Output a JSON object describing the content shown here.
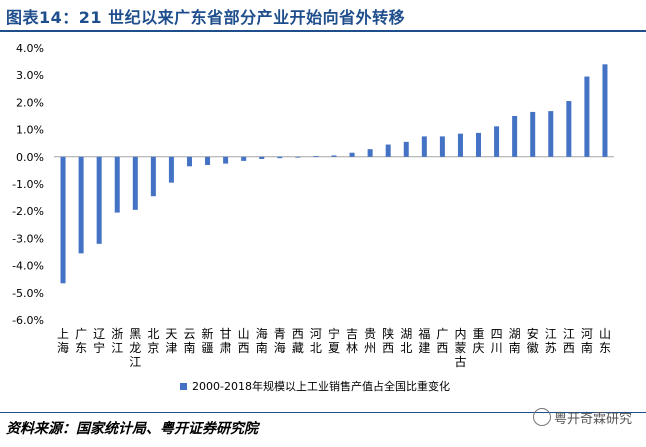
{
  "title": "图表14：21 世纪以来广东省部分产业开始向省外转移",
  "source": "资料来源：国家统计局、粤开证券研究院",
  "watermark": "粤开奇霖研究",
  "colors": {
    "bar": "#4472c4",
    "title": "#1f4e8c",
    "axis": "#808080"
  },
  "chart_data": {
    "type": "bar",
    "categories": [
      "上海",
      "广东",
      "辽宁",
      "浙江",
      "黑龙江",
      "北京",
      "天津",
      "云南",
      "新疆",
      "甘肃",
      "山西",
      "海南",
      "青海",
      "西藏",
      "河北",
      "宁夏",
      "吉林",
      "贵州",
      "陕西",
      "湖北",
      "福建",
      "广西",
      "内蒙古",
      "重庆",
      "四川",
      "湖南",
      "安徽",
      "江苏",
      "江西",
      "河南",
      "山东"
    ],
    "series": [
      {
        "name": "2000-2018年规模以上工业销售产值占全国比重变化",
        "values": [
          -4.65,
          -3.55,
          -3.2,
          -2.05,
          -1.95,
          -1.45,
          -0.95,
          -0.35,
          -0.3,
          -0.25,
          -0.15,
          -0.08,
          -0.05,
          -0.03,
          0.03,
          0.05,
          0.15,
          0.28,
          0.45,
          0.55,
          0.75,
          0.75,
          0.85,
          0.88,
          1.12,
          1.5,
          1.65,
          1.68,
          2.05,
          2.95,
          3.4
        ]
      }
    ],
    "yticks": [
      "4.0%",
      "3.0%",
      "2.0%",
      "1.0%",
      "0.0%",
      "-1.0%",
      "-2.0%",
      "-3.0%",
      "-4.0%",
      "-5.0%",
      "-6.0%"
    ],
    "ylim": [
      -6,
      4
    ],
    "legend_position": "bottom-center"
  }
}
